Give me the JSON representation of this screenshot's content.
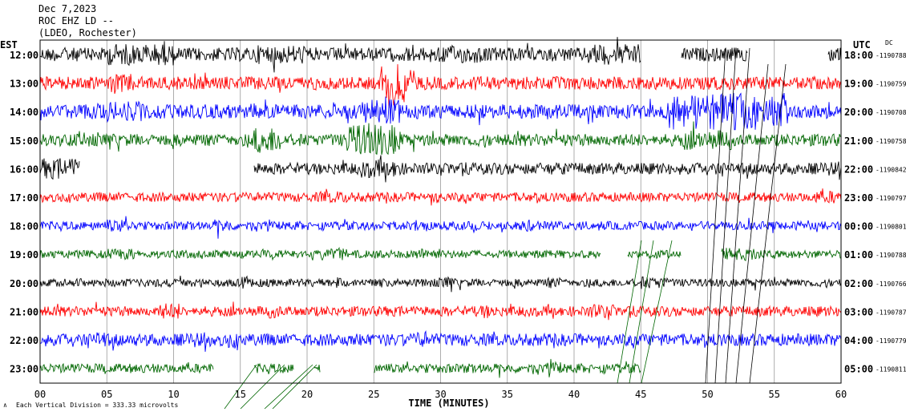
{
  "header": {
    "date": "Dec 7,2023",
    "station": "ROC EHZ LD --",
    "network": "(LDEO, Rochester)"
  },
  "left_axis_label": "EST",
  "right_axis_label": "UTC",
  "right_axis_sublabel": "DC",
  "x_axis_label": "TIME (MINUTES)",
  "footer_note": "Each Vertical Division = 333.33 microvolts",
  "trace_colors": [
    "#000000",
    "#ff0000",
    "#0000ff",
    "#006600"
  ],
  "chart_data": {
    "type": "line",
    "description": "helicorder",
    "x_ticks": [
      "00",
      "05",
      "10",
      "15",
      "20",
      "25",
      "30",
      "35",
      "40",
      "45",
      "50",
      "55",
      "60"
    ],
    "xlim": [
      0,
      60
    ],
    "rows": [
      {
        "est": "12:00",
        "utc": "18:00",
        "dc": "-1190788",
        "amp": 0.95,
        "gaps": [
          [
            45,
            48
          ],
          [
            53,
            59
          ]
        ],
        "bursts": [
          [
            5,
            10,
            1.6
          ],
          [
            16,
            20,
            1.4
          ],
          [
            29,
            33,
            1.3
          ],
          [
            41,
            45,
            1.5
          ]
        ]
      },
      {
        "est": "13:00",
        "utc": "19:00",
        "dc": "-1190759",
        "amp": 0.9,
        "gaps": [],
        "bursts": [
          [
            25.5,
            28,
            3.0
          ],
          [
            5,
            7,
            1.4
          ]
        ]
      },
      {
        "est": "14:00",
        "utc": "20:00",
        "dc": "-1190708",
        "amp": 1.0,
        "gaps": [],
        "bursts": [
          [
            47,
            56,
            2.6
          ],
          [
            24,
            27,
            1.8
          ],
          [
            5,
            8,
            1.4
          ]
        ]
      },
      {
        "est": "15:00",
        "utc": "21:00",
        "dc": "-1190758",
        "amp": 0.85,
        "gaps": [],
        "bursts": [
          [
            16,
            18,
            2.2
          ],
          [
            23,
            27,
            2.6
          ],
          [
            48,
            52,
            1.6
          ]
        ]
      },
      {
        "est": "16:00",
        "utc": "22:00",
        "dc": "-1190842",
        "amp": 0.8,
        "gaps": [
          [
            3,
            16
          ]
        ],
        "bursts": [
          [
            0,
            3,
            1.8
          ],
          [
            24,
            27,
            1.6
          ]
        ]
      },
      {
        "est": "17:00",
        "utc": "23:00",
        "dc": "-1190797",
        "amp": 0.65,
        "gaps": [],
        "bursts": [
          [
            21,
            23,
            1.3
          ],
          [
            29,
            30,
            1.3
          ],
          [
            58,
            60,
            1.4
          ]
        ]
      },
      {
        "est": "18:00",
        "utc": "00:00",
        "dc": "-1190801",
        "amp": 0.6,
        "gaps": [],
        "bursts": [
          [
            5,
            7,
            1.5
          ],
          [
            13,
            14.5,
            1.5
          ],
          [
            28,
            29,
            1.5
          ],
          [
            36,
            37,
            1.4
          ]
        ]
      },
      {
        "est": "19:00",
        "utc": "01:00",
        "dc": "-1190788",
        "amp": 0.55,
        "gaps": [
          [
            42,
            44
          ],
          [
            48,
            51
          ]
        ],
        "bursts": [
          [
            5,
            7,
            1.4
          ],
          [
            21,
            23,
            1.5
          ],
          [
            28,
            30,
            1.5
          ],
          [
            51,
            54,
            1.6
          ]
        ]
      },
      {
        "est": "20:00",
        "utc": "02:00",
        "dc": "-1190766",
        "amp": 0.55,
        "gaps": [],
        "bursts": [
          [
            15,
            15.5,
            1.6
          ],
          [
            22,
            23,
            1.6
          ],
          [
            30,
            31,
            1.5
          ],
          [
            38,
            39,
            1.4
          ],
          [
            45,
            47,
            1.6
          ]
        ]
      },
      {
        "est": "21:00",
        "utc": "03:00",
        "dc": "-1190787",
        "amp": 0.7,
        "gaps": [],
        "bursts": [
          [
            9,
            10.5,
            1.6
          ],
          [
            17,
            18,
            1.4
          ],
          [
            33,
            34,
            1.4
          ],
          [
            41,
            43,
            1.4
          ]
        ]
      },
      {
        "est": "22:00",
        "utc": "04:00",
        "dc": "-1190779",
        "amp": 0.85,
        "gaps": [],
        "bursts": [
          [
            4,
            5,
            1.4
          ],
          [
            14,
            15,
            1.4
          ],
          [
            28,
            29,
            1.4
          ]
        ]
      },
      {
        "est": "23:00",
        "utc": "05:00",
        "dc": "-1190811",
        "amp": 0.65,
        "gaps": [
          [
            13,
            16
          ],
          [
            19,
            20.5
          ],
          [
            21,
            25
          ],
          [
            45,
            60
          ]
        ],
        "bursts": [
          [
            38,
            39,
            1.4
          ]
        ]
      }
    ]
  }
}
